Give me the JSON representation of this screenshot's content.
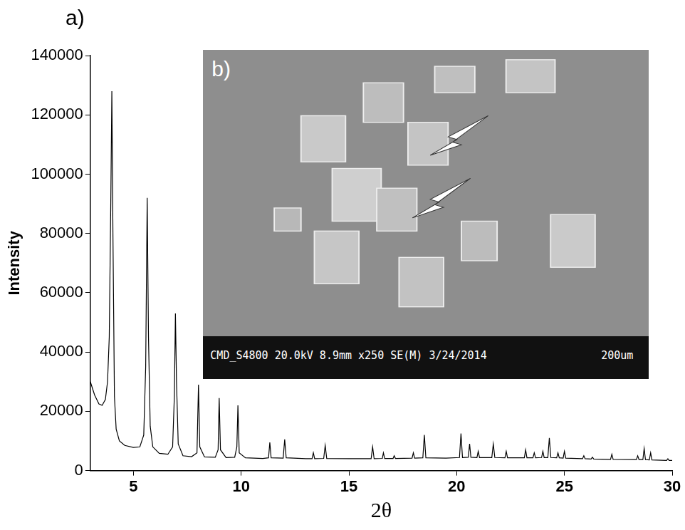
{
  "chart_data": {
    "type": "line",
    "panel_label": "a)",
    "x_label": "2θ",
    "y_label": "Intensity",
    "color": "#000000",
    "grid": false,
    "xlim": [
      3,
      30
    ],
    "xticks": [
      5,
      10,
      15,
      20,
      25,
      30
    ],
    "ylim": [
      0,
      140000
    ],
    "yticks": [
      0,
      20000,
      40000,
      60000,
      80000,
      100000,
      120000,
      140000
    ],
    "x": [
      3.0,
      3.2,
      3.4,
      3.55,
      3.7,
      3.8,
      3.88,
      3.95,
      4.0,
      4.05,
      4.12,
      4.2,
      4.35,
      4.6,
      5.0,
      5.3,
      5.48,
      5.57,
      5.64,
      5.7,
      5.78,
      5.9,
      6.2,
      6.6,
      6.82,
      6.9,
      6.95,
      7.0,
      7.08,
      7.3,
      7.7,
      7.95,
      8.02,
      8.08,
      8.3,
      8.8,
      8.93,
      8.98,
      9.04,
      9.3,
      9.7,
      9.8,
      9.85,
      9.91,
      10.2,
      11.0,
      11.27,
      11.33,
      11.39,
      11.95,
      12.02,
      12.09,
      13.0,
      13.29,
      13.35,
      13.41,
      13.83,
      13.9,
      13.97,
      15.0,
      16.03,
      16.1,
      16.17,
      16.55,
      16.6,
      16.66,
      17.05,
      17.1,
      17.16,
      17.93,
      17.99,
      18.05,
      18.43,
      18.5,
      18.57,
      19.5,
      20.13,
      20.2,
      20.27,
      20.54,
      20.6,
      20.66,
      20.94,
      21.0,
      21.06,
      21.63,
      21.7,
      21.77,
      22.24,
      22.3,
      22.36,
      23.14,
      23.2,
      23.26,
      23.54,
      23.6,
      23.66,
      23.94,
      24.0,
      24.06,
      24.23,
      24.3,
      24.37,
      24.64,
      24.7,
      24.76,
      24.94,
      25.0,
      25.06,
      25.84,
      25.9,
      25.96,
      26.24,
      26.3,
      26.36,
      27.14,
      27.2,
      27.26,
      28.34,
      28.4,
      28.46,
      28.64,
      28.7,
      28.76,
      28.94,
      29.0,
      29.06,
      29.74,
      29.8,
      29.86,
      30.0
    ],
    "values": [
      30000,
      25500,
      22500,
      22000,
      24000,
      30000,
      45000,
      90000,
      128000,
      80000,
      25000,
      14000,
      10000,
      8500,
      7800,
      8000,
      12000,
      35000,
      92000,
      45000,
      15000,
      8000,
      5800,
      5500,
      8000,
      25000,
      53000,
      30000,
      9000,
      5000,
      4700,
      6000,
      29000,
      8000,
      4600,
      4500,
      7000,
      24500,
      7000,
      4400,
      4500,
      8000,
      22000,
      6000,
      4300,
      4100,
      4300,
      9500,
      4300,
      4200,
      10500,
      4300,
      4000,
      4000,
      6000,
      4000,
      4100,
      8500,
      4100,
      4000,
      4000,
      8000,
      4000,
      4100,
      6000,
      4100,
      4100,
      5000,
      4100,
      4200,
      6000,
      4200,
      4300,
      12000,
      4300,
      4200,
      4400,
      12500,
      4400,
      4500,
      9000,
      4500,
      4400,
      6500,
      4400,
      4400,
      9000,
      4400,
      4300,
      6500,
      4300,
      4300,
      7000,
      4300,
      4300,
      6000,
      4300,
      4400,
      6500,
      4400,
      4400,
      11000,
      4400,
      4300,
      6000,
      4300,
      4200,
      6500,
      4200,
      4000,
      5000,
      4000,
      3900,
      4500,
      3900,
      3800,
      5500,
      3800,
      3700,
      5000,
      3700,
      3700,
      7500,
      3700,
      3600,
      6000,
      3600,
      3400,
      4000,
      3400,
      3400
    ]
  },
  "inset": {
    "label": "b)",
    "info": "CMD_S4800 20.0kV 8.9mm x250 SE(M) 3/24/2014",
    "scale_bar": "200um"
  }
}
